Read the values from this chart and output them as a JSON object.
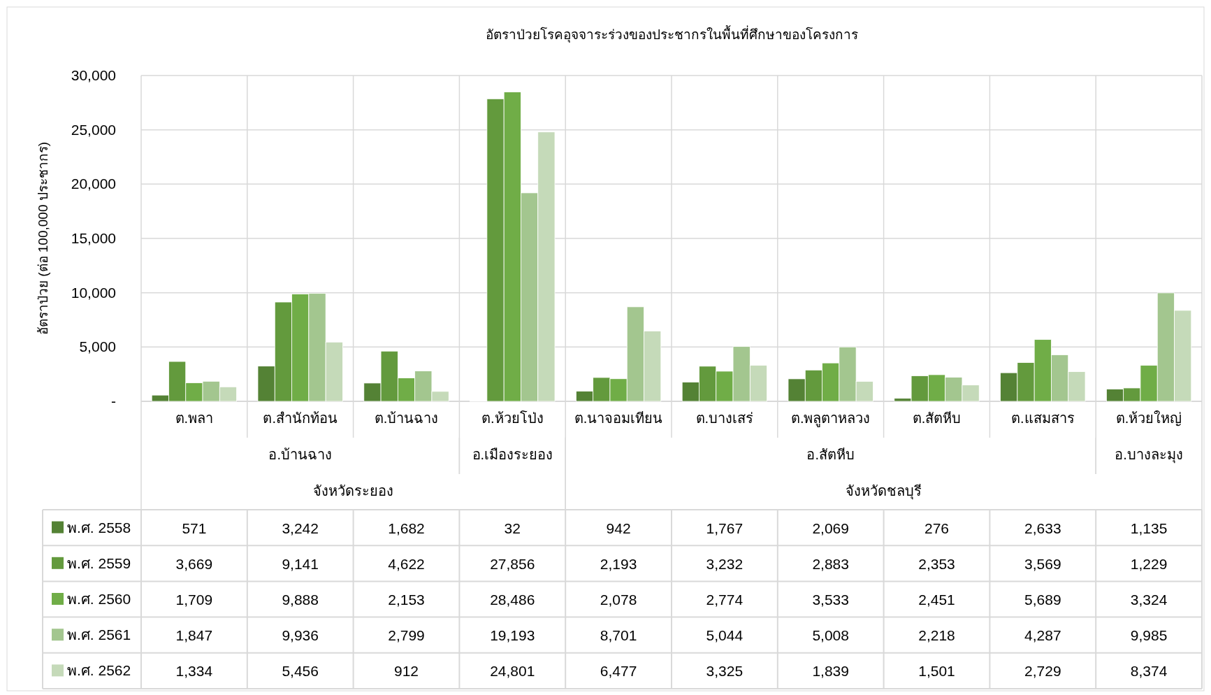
{
  "chart_data": {
    "type": "bar",
    "title": "อัตราป่วยโรคอุจจาระร่วงของประชากรในพื้นที่ศึกษาของโครงการ",
    "ylabel": "อัตราป่วย (ต่อ 100,000 ประชากร)",
    "categories": [
      "ต.พลา",
      "ต.สำนักท้อน",
      "ต.บ้านฉาง",
      "ต.ห้วยโป่ง",
      "ต.นาจอมเทียน",
      "ต.บางเสร่",
      "ต.พลูตาหลวง",
      "ต.สัตหีบ",
      "ต.แสมสาร",
      "ต.ห้วยใหญ่"
    ],
    "annotations": [
      "อ.บ้านฉาง",
      "อ.เมืองระยอง",
      "อ.สัตหีบ",
      "อ.บางละมุง",
      "จังหวัดระยอง",
      "จังหวัดชลบุรี"
    ],
    "series": [
      {
        "name": "พ.ศ. 2558",
        "color": "#548235",
        "values": [
          571,
          3242,
          1682,
          32,
          942,
          1767,
          2069,
          276,
          2633,
          1135
        ],
        "value_labels": [
          "571",
          "3,242",
          "1,682",
          "32",
          "942",
          "1,767",
          "2,069",
          "276",
          "2,633",
          "1,135"
        ]
      },
      {
        "name": "พ.ศ. 2559",
        "color": "#639a3d",
        "values": [
          3669,
          9141,
          4622,
          27856,
          2193,
          3232,
          2883,
          2353,
          3569,
          1229
        ],
        "value_labels": [
          "3,669",
          "9,141",
          "4,622",
          "27,856",
          "2,193",
          "3,232",
          "2,883",
          "2,353",
          "3,569",
          "1,229"
        ]
      },
      {
        "name": "พ.ศ. 2560",
        "color": "#70ad47",
        "values": [
          1709,
          9888,
          2153,
          28486,
          2078,
          2774,
          3533,
          2451,
          5689,
          3324
        ],
        "value_labels": [
          "1,709",
          "9,888",
          "2,153",
          "28,486",
          "2,078",
          "2,774",
          "3,533",
          "2,451",
          "5,689",
          "3,324"
        ]
      },
      {
        "name": "พ.ศ. 2561",
        "color": "#a3c68f",
        "values": [
          1847,
          9936,
          2799,
          19193,
          8701,
          5044,
          5008,
          2218,
          4287,
          9985
        ],
        "value_labels": [
          "1,847",
          "9,936",
          "2,799",
          "19,193",
          "8,701",
          "5,044",
          "5,008",
          "2,218",
          "4,287",
          "9,985"
        ]
      },
      {
        "name": "พ.ศ. 2562",
        "color": "#c5dab9",
        "values": [
          1334,
          5456,
          912,
          24801,
          6477,
          3325,
          1839,
          1501,
          2729,
          8374
        ],
        "value_labels": [
          "1,334",
          "5,456",
          "912",
          "24,801",
          "6,477",
          "3,325",
          "1,839",
          "1,501",
          "2,729",
          "8,374"
        ]
      }
    ],
    "ylim": [
      0,
      30000
    ],
    "yticks": [
      {
        "value": 0,
        "label": "-"
      },
      {
        "value": 5000,
        "label": "5,000"
      },
      {
        "value": 10000,
        "label": "10,000"
      },
      {
        "value": 15000,
        "label": "15,000"
      },
      {
        "value": 20000,
        "label": "20,000"
      },
      {
        "value": 25000,
        "label": "25,000"
      },
      {
        "value": 30000,
        "label": "30,000"
      }
    ],
    "grid": "y",
    "legend": "bottom left"
  }
}
